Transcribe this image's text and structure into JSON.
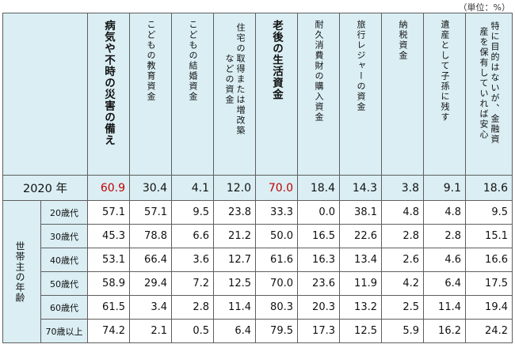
{
  "unit_label": "（単位：%）",
  "columns": [
    {
      "label": "病気や不時の災害の備え",
      "bold": true
    },
    {
      "label": "こどもの教育資金",
      "bold": false
    },
    {
      "label": "こどもの結婚資金",
      "bold": false
    },
    {
      "label": "住宅の取得または増改築などの資金",
      "bold": false
    },
    {
      "label": "老後の生活資金",
      "bold": true
    },
    {
      "label": "耐久消費財の購入資金",
      "bold": false
    },
    {
      "label": "旅行レジャーの資金",
      "bold": false
    },
    {
      "label": "納税資金",
      "bold": false
    },
    {
      "label": "遺産として子孫に残す",
      "bold": false
    },
    {
      "label": "特に目的はないが、金融資産を保有していれば安心",
      "bold": false
    }
  ],
  "year_row": {
    "label": "2020 年",
    "values": [
      "60.9",
      "30.4",
      "4.1",
      "12.0",
      "70.0",
      "18.4",
      "14.3",
      "3.8",
      "9.1",
      "18.6"
    ],
    "highlight_color": "#c00000"
  },
  "group_label": "世帯主の年齢",
  "rows": [
    {
      "age": "20歳代",
      "values": [
        "57.1",
        "57.1",
        "9.5",
        "23.8",
        "33.3",
        "0.0",
        "38.1",
        "4.8",
        "4.8",
        "9.5"
      ]
    },
    {
      "age": "30歳代",
      "values": [
        "45.3",
        "78.8",
        "6.6",
        "21.2",
        "50.0",
        "16.5",
        "22.6",
        "2.8",
        "2.8",
        "15.1"
      ]
    },
    {
      "age": "40歳代",
      "values": [
        "53.1",
        "66.4",
        "3.6",
        "12.7",
        "61.6",
        "16.3",
        "13.4",
        "2.6",
        "4.6",
        "16.6"
      ]
    },
    {
      "age": "50歳代",
      "values": [
        "58.9",
        "29.4",
        "7.2",
        "12.5",
        "70.0",
        "23.6",
        "11.9",
        "4.2",
        "6.4",
        "17.5"
      ]
    },
    {
      "age": "60歳代",
      "values": [
        "61.5",
        "3.4",
        "2.8",
        "11.4",
        "80.3",
        "20.3",
        "13.2",
        "2.5",
        "11.4",
        "19.4"
      ]
    },
    {
      "age": "70歳以上",
      "values": [
        "74.2",
        "2.1",
        "0.5",
        "6.4",
        "79.5",
        "17.3",
        "12.5",
        "5.9",
        "16.2",
        "24.2"
      ]
    }
  ],
  "colors": {
    "header_bg": "#daeef3",
    "border": "#5e5e5e"
  }
}
